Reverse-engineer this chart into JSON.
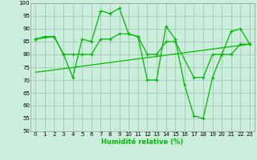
{
  "title": "",
  "xlabel": "Humidité relative (%)",
  "ylabel": "",
  "background_color": "#cceedd",
  "grid_color": "#aaccbb",
  "line_color": "#00bb00",
  "xmin": -0.5,
  "xmax": 23.5,
  "ymin": 50,
  "ymax": 100,
  "yticks": [
    50,
    55,
    60,
    65,
    70,
    75,
    80,
    85,
    90,
    95,
    100
  ],
  "xticks": [
    0,
    1,
    2,
    3,
    4,
    5,
    6,
    7,
    8,
    9,
    10,
    11,
    12,
    13,
    14,
    15,
    16,
    17,
    18,
    19,
    20,
    21,
    22,
    23
  ],
  "series1_x": [
    0,
    1,
    2,
    3,
    4,
    5,
    6,
    7,
    8,
    9,
    10,
    11,
    12,
    13,
    14,
    15,
    16,
    17,
    18,
    19,
    20,
    21,
    22,
    23
  ],
  "series1_y": [
    86,
    87,
    87,
    80,
    71,
    86,
    85,
    97,
    96,
    98,
    88,
    87,
    70,
    70,
    91,
    86,
    68,
    56,
    55,
    71,
    80,
    89,
    90,
    84
  ],
  "series2_x": [
    0,
    2,
    3,
    4,
    5,
    6,
    7,
    8,
    9,
    10,
    11,
    12,
    13,
    14,
    15,
    17,
    18,
    19,
    20,
    21,
    22,
    23
  ],
  "series2_y": [
    86,
    87,
    80,
    80,
    80,
    80,
    86,
    86,
    88,
    88,
    87,
    80,
    80,
    85,
    85,
    71,
    71,
    80,
    80,
    80,
    84,
    84
  ],
  "series3_x": [
    0,
    23
  ],
  "series3_y": [
    73,
    84
  ]
}
